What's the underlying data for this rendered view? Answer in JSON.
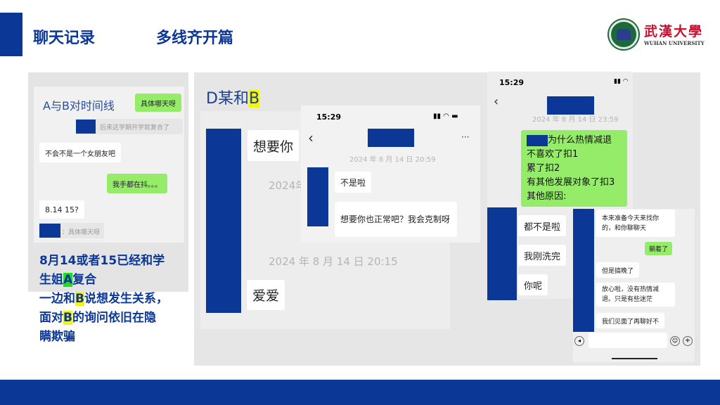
{
  "header": {
    "title": "聊天记录",
    "subtitle": "多线齐开篇",
    "logo_text": "武漢大學",
    "logo_en": "WUHAN UNIVERSITY"
  },
  "colors": {
    "brand": "#0b3896",
    "wechat_green": "#95ec69",
    "highlight_yellow": "#f5f50a",
    "highlight_green": "#22dd22"
  },
  "left_panel": {
    "title": "A与B对时间线",
    "messages": [
      "具体哪天呀",
      "后来这学期开学就复合了",
      "不会不是一个女朋友吧",
      "我手都在抖。。。",
      "8.14 15?",
      "：具体哪天呀"
    ],
    "summary": {
      "line1a": "8月14或者15已经和学",
      "line1b": "生姐",
      "line1c": "A",
      "line1d": "复合",
      "line2a": "一边和",
      "line2b": "B",
      "line2c": "说想发生关系，",
      "line3a": "面对",
      "line3b": "B",
      "line3c": "的询问依旧在隐",
      "line4": "瞒欺骗"
    }
  },
  "middle_panel": {
    "title_a": "D某和",
    "title_b": "B",
    "chat1": {
      "messages": [
        "想要你",
        "爱爱"
      ],
      "timestamp_partial": "2024年",
      "timestamp": "2024 年 8 月 14 日 20:15"
    },
    "chat2": {
      "time": "15:29",
      "timestamp": "2024 年 8 月 14 日 20:59",
      "messages": [
        "不是啦",
        "想要你也正常吧？我会克制呀"
      ],
      "more": "···",
      "back": "‹"
    }
  },
  "right_panel": {
    "chat1": {
      "time": "15:29",
      "back": "‹",
      "timestamp": "2024 年 8 月 14 日 23:59",
      "green_lines": [
        "为什么热情减退",
        "不喜欢了扣1",
        "累了扣2",
        "有其他发展对象了扣3",
        "其他原因:"
      ],
      "messages": [
        "都不是啦",
        "我刚洗完",
        "你呢"
      ]
    },
    "chat2": {
      "messages": [
        "本来准备今天来找你的，和你聊聊天",
        "躺着了",
        "但是搞晚了",
        "放心啦，没有热情减退。只是有些迷茫",
        "我们见面了再聊好不"
      ]
    }
  }
}
